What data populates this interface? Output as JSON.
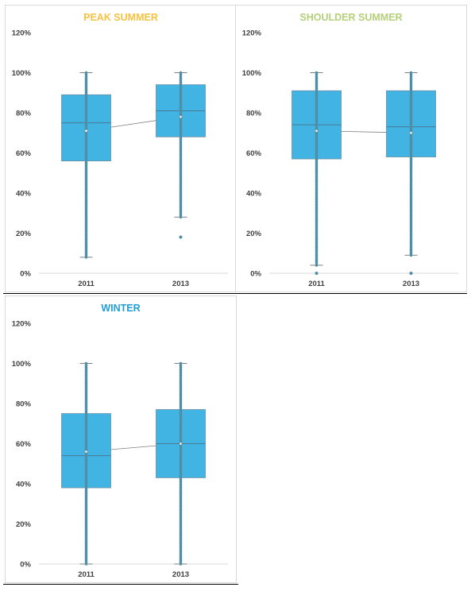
{
  "chart_data": [
    {
      "type": "box",
      "title": "PEAK SUMMER",
      "title_color": "#f5c242",
      "categories": [
        "2011",
        "2013"
      ],
      "ylim": [
        0,
        120
      ],
      "yticks": [
        "0%",
        "20%",
        "40%",
        "60%",
        "80%",
        "100%",
        "120%"
      ],
      "box_color": "#41b4e3",
      "boxes": [
        {
          "category": "2011",
          "min": 8,
          "q1": 56,
          "median": 75,
          "q3": 89,
          "max": 100,
          "mean": 71,
          "outliers": []
        },
        {
          "category": "2013",
          "min": 28,
          "q1": 68,
          "median": 81,
          "q3": 94,
          "max": 100,
          "mean": 78,
          "outliers": [
            18
          ]
        }
      ]
    },
    {
      "type": "box",
      "title": "SHOULDER SUMMER",
      "title_color": "#b5d07a",
      "categories": [
        "2011",
        "2013"
      ],
      "ylim": [
        0,
        120
      ],
      "yticks": [
        "0%",
        "20%",
        "40%",
        "60%",
        "80%",
        "100%",
        "120%"
      ],
      "box_color": "#41b4e3",
      "boxes": [
        {
          "category": "2011",
          "min": 4,
          "q1": 57,
          "median": 74,
          "q3": 91,
          "max": 100,
          "mean": 71,
          "outliers": [
            0
          ]
        },
        {
          "category": "2013",
          "min": 9,
          "q1": 58,
          "median": 73,
          "q3": 91,
          "max": 100,
          "mean": 70,
          "outliers": [
            0
          ]
        }
      ]
    },
    {
      "type": "box",
      "title": "WINTER",
      "title_color": "#1f9ed6",
      "categories": [
        "2011",
        "2013"
      ],
      "ylim": [
        0,
        120
      ],
      "yticks": [
        "0%",
        "20%",
        "40%",
        "60%",
        "80%",
        "100%",
        "120%"
      ],
      "box_color": "#41b4e3",
      "boxes": [
        {
          "category": "2011",
          "min": 0,
          "q1": 38,
          "median": 54,
          "q3": 75,
          "max": 100,
          "mean": 56,
          "outliers": []
        },
        {
          "category": "2013",
          "min": 0,
          "q1": 43,
          "median": 60,
          "q3": 77,
          "max": 100,
          "mean": 60,
          "outliers": []
        }
      ]
    }
  ]
}
